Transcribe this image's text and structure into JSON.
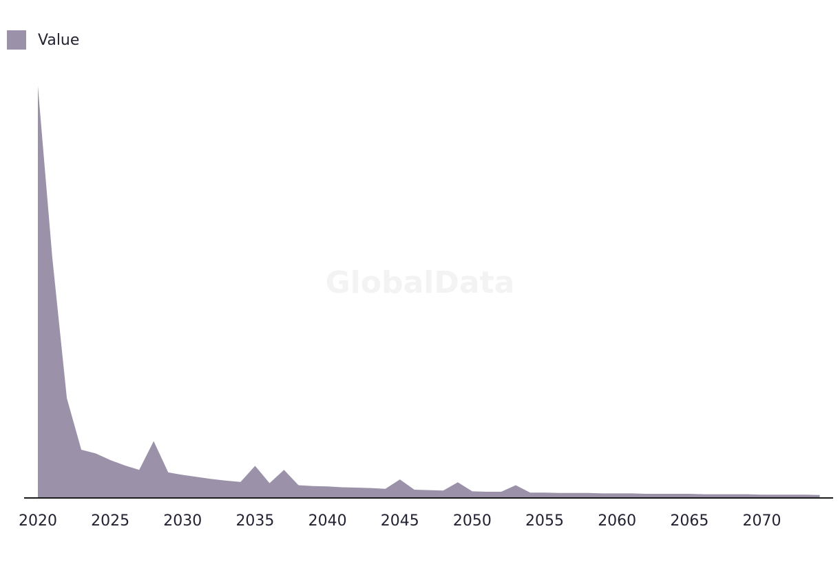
{
  "legend": {
    "label": "Value"
  },
  "watermark": "GlobalData",
  "colors": {
    "area": "#9b91a9",
    "axis": "#1a1a1a"
  },
  "chart_data": {
    "type": "area",
    "series": [
      {
        "name": "Value",
        "x": [
          2020,
          2021,
          2022,
          2023,
          2024,
          2025,
          2026,
          2027,
          2028,
          2029,
          2030,
          2031,
          2032,
          2033,
          2034,
          2035,
          2036,
          2037,
          2038,
          2039,
          2040,
          2041,
          2042,
          2043,
          2044,
          2045,
          2046,
          2047,
          2048,
          2049,
          2050,
          2051,
          2052,
          2053,
          2054,
          2055,
          2056,
          2057,
          2058,
          2059,
          2060,
          2061,
          2062,
          2063,
          2064,
          2065,
          2066,
          2067,
          2068,
          2069,
          2070,
          2071,
          2072,
          2073,
          2074
        ],
        "values": [
          100,
          58.3,
          24.2,
          11.7,
          10.8,
          9.2,
          7.9,
          6.8,
          13.8,
          6.2,
          5.6,
          5.1,
          4.6,
          4.2,
          3.9,
          7.8,
          3.6,
          6.8,
          3.1,
          2.9,
          2.8,
          2.6,
          2.5,
          2.4,
          2.2,
          4.5,
          2,
          1.9,
          1.8,
          3.8,
          1.6,
          1.5,
          1.5,
          3.1,
          1.3,
          1.3,
          1.2,
          1.2,
          1.2,
          1.1,
          1.1,
          1.1,
          1,
          1,
          1,
          1,
          0.9,
          0.9,
          0.9,
          0.9,
          0.8,
          0.8,
          0.8,
          0.8,
          0.7
        ]
      }
    ],
    "xticks": [
      2020,
      2025,
      2030,
      2035,
      2040,
      2045,
      2050,
      2055,
      2060,
      2065,
      2070
    ],
    "xlim": [
      2020,
      2074
    ],
    "ylim": [
      0,
      100
    ],
    "grid": false,
    "legend_position": "top-left"
  }
}
